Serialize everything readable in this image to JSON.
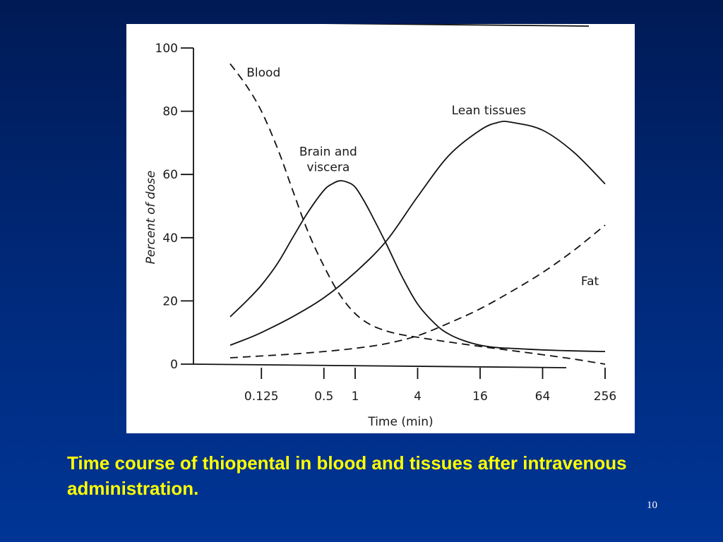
{
  "slide": {
    "caption": "Time course of thiopental in blood and tissues after intravenous administration.",
    "slide_number": "10",
    "background_color": "#002a7c",
    "caption_color": "#ffff00"
  },
  "chart_data": {
    "type": "line",
    "title": "",
    "xlabel": "Time (min)",
    "ylabel": "Percent of dose",
    "x_scale": "log2",
    "xlim": [
      0.0625,
      256
    ],
    "ylim": [
      0,
      100
    ],
    "grid": false,
    "legend": "inline labels",
    "x_ticks": [
      0.125,
      0.5,
      1,
      4,
      16,
      64,
      256
    ],
    "x_tick_labels": [
      "0.125",
      "0.5",
      "1",
      "4",
      "16",
      "64",
      "256"
    ],
    "y_ticks": [
      0,
      20,
      40,
      60,
      80,
      100
    ],
    "y_tick_labels": [
      "0",
      "20",
      "40",
      "60",
      "80",
      "100"
    ],
    "series": [
      {
        "name": "Blood",
        "style": "dashed",
        "label_text": "Blood",
        "x": [
          0.0625,
          0.09,
          0.125,
          0.18,
          0.25,
          0.35,
          0.5,
          0.71,
          1,
          1.4,
          2,
          2.8,
          4,
          6,
          8,
          16,
          32,
          64,
          128,
          256
        ],
        "y": [
          95,
          88,
          80,
          68,
          55,
          42,
          31,
          22,
          16,
          12.5,
          10.5,
          9.3,
          8.5,
          7.6,
          7,
          5.6,
          4.3,
          3,
          1.6,
          0
        ]
      },
      {
        "name": "Brain and viscera",
        "style": "solid",
        "label_text": [
          "Brain and",
          "viscera"
        ],
        "x": [
          0.0625,
          0.09,
          0.125,
          0.18,
          0.25,
          0.35,
          0.5,
          0.6,
          0.71,
          0.85,
          1,
          1.2,
          1.4,
          2,
          2.8,
          4,
          6,
          8,
          11,
          16,
          24,
          32,
          64,
          128,
          256
        ],
        "y": [
          15,
          20,
          25,
          32,
          40,
          48,
          55,
          57,
          58,
          57.5,
          56,
          52,
          48,
          38,
          28,
          19,
          12.5,
          9.5,
          7.5,
          6,
          5.2,
          5,
          4.5,
          4.2,
          4
        ]
      },
      {
        "name": "Lean tissues",
        "style": "solid",
        "label_text": "Lean tissues",
        "x": [
          0.0625,
          0.09,
          0.125,
          0.25,
          0.5,
          1,
          2,
          4,
          8,
          16,
          24,
          32,
          64,
          128,
          256
        ],
        "y": [
          6,
          8,
          10,
          15,
          21,
          29,
          39,
          53,
          66,
          74,
          76.5,
          76.5,
          74,
          67,
          57
        ]
      },
      {
        "name": "Fat",
        "style": "dashed",
        "label_text": "Fat",
        "x": [
          0.0625,
          0.125,
          0.25,
          0.5,
          1,
          2,
          4,
          8,
          16,
          32,
          64,
          128,
          256
        ],
        "y": [
          2,
          2.6,
          3.2,
          4,
          5,
          6.5,
          9,
          13,
          17.5,
          23,
          29,
          36,
          44
        ]
      }
    ]
  }
}
